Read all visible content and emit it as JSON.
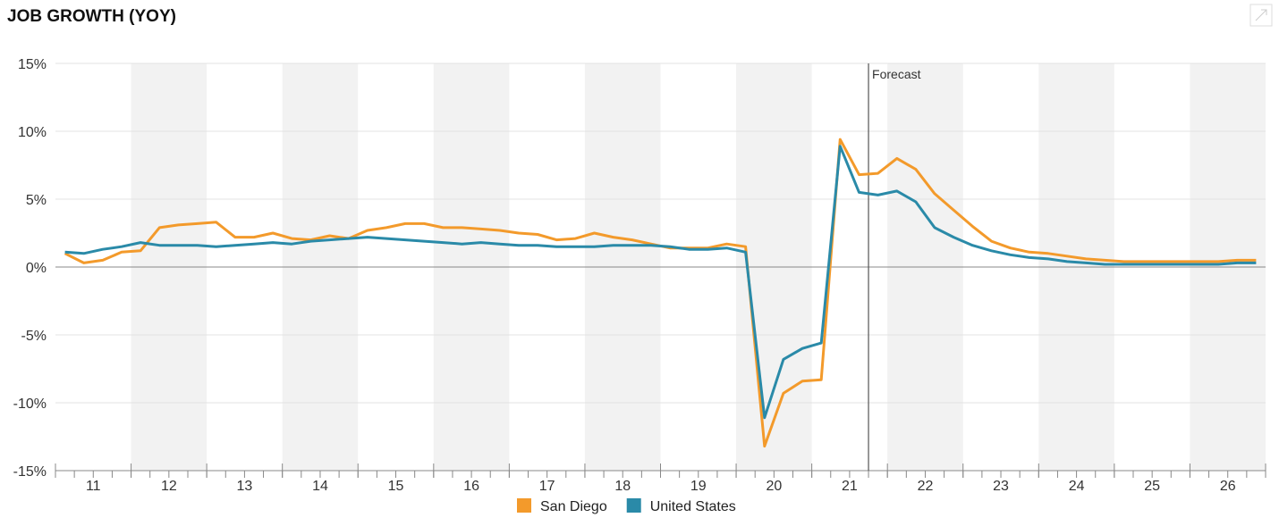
{
  "chart_data": {
    "type": "line",
    "title": "JOB GROWTH (YOY)",
    "x": [
      11.125,
      11.375,
      11.625,
      11.875,
      12.125,
      12.375,
      12.625,
      12.875,
      13.125,
      13.375,
      13.625,
      13.875,
      14.125,
      14.375,
      14.625,
      14.875,
      15.125,
      15.375,
      15.625,
      15.875,
      16.125,
      16.375,
      16.625,
      16.875,
      17.125,
      17.375,
      17.625,
      17.875,
      18.125,
      18.375,
      18.625,
      18.875,
      19.125,
      19.375,
      19.625,
      19.875,
      20.125,
      20.375,
      20.625,
      20.875,
      21.125,
      21.375,
      21.625,
      21.875,
      22.125,
      22.375,
      22.625,
      22.875,
      23.125,
      23.375,
      23.625,
      23.875,
      24.125,
      24.375,
      24.625,
      24.875,
      25.125,
      25.375,
      25.625,
      25.875,
      26.125,
      26.375,
      26.625,
      26.875
    ],
    "series": [
      {
        "name": "San Diego",
        "color": "#f39a2b",
        "values": [
          1.0,
          0.3,
          0.5,
          1.1,
          1.2,
          2.9,
          3.1,
          3.2,
          3.3,
          2.2,
          2.2,
          2.5,
          2.1,
          2.0,
          2.3,
          2.1,
          2.7,
          2.9,
          3.2,
          3.2,
          2.9,
          2.9,
          2.8,
          2.7,
          2.5,
          2.4,
          2.0,
          2.1,
          2.5,
          2.2,
          2.0,
          1.7,
          1.4,
          1.4,
          1.4,
          1.7,
          1.5,
          -13.2,
          -9.3,
          -8.4,
          -8.3,
          9.4,
          6.8,
          6.9,
          8.0,
          7.2,
          5.4,
          4.2,
          3.0,
          1.9,
          1.4,
          1.1,
          1.0,
          0.8,
          0.6,
          0.5,
          0.4,
          0.4,
          0.4,
          0.4,
          0.4,
          0.4,
          0.5,
          0.5
        ]
      },
      {
        "name": "United States",
        "color": "#2a8aa8",
        "values": [
          1.1,
          1.0,
          1.3,
          1.5,
          1.8,
          1.6,
          1.6,
          1.6,
          1.5,
          1.6,
          1.7,
          1.8,
          1.7,
          1.9,
          2.0,
          2.1,
          2.2,
          2.1,
          2.0,
          1.9,
          1.8,
          1.7,
          1.8,
          1.7,
          1.6,
          1.6,
          1.5,
          1.5,
          1.5,
          1.6,
          1.6,
          1.6,
          1.5,
          1.3,
          1.3,
          1.4,
          1.1,
          -11.1,
          -6.8,
          -6.0,
          -5.6,
          8.9,
          5.5,
          5.3,
          5.6,
          4.8,
          2.9,
          2.2,
          1.6,
          1.2,
          0.9,
          0.7,
          0.6,
          0.4,
          0.3,
          0.2,
          0.2,
          0.2,
          0.2,
          0.2,
          0.2,
          0.2,
          0.3,
          0.3
        ]
      }
    ],
    "xlim": [
      11,
      27
    ],
    "xticks": [
      {
        "value": 11.5,
        "label": "11"
      },
      {
        "value": 12.5,
        "label": "12"
      },
      {
        "value": 13.5,
        "label": "13"
      },
      {
        "value": 14.5,
        "label": "14"
      },
      {
        "value": 15.5,
        "label": "15"
      },
      {
        "value": 16.5,
        "label": "16"
      },
      {
        "value": 17.5,
        "label": "17"
      },
      {
        "value": 18.5,
        "label": "18"
      },
      {
        "value": 19.5,
        "label": "19"
      },
      {
        "value": 20.5,
        "label": "20"
      },
      {
        "value": 21.5,
        "label": "21"
      },
      {
        "value": 22.5,
        "label": "22"
      },
      {
        "value": 23.5,
        "label": "23"
      },
      {
        "value": 24.5,
        "label": "24"
      },
      {
        "value": 25.5,
        "label": "25"
      },
      {
        "value": 26.5,
        "label": "26"
      }
    ],
    "ylim": [
      -15,
      15
    ],
    "yticks": [
      {
        "value": -15,
        "label": "-15%"
      },
      {
        "value": -10,
        "label": "-10%"
      },
      {
        "value": -5,
        "label": "-5%"
      },
      {
        "value": 0,
        "label": "0%"
      },
      {
        "value": 5,
        "label": "5%"
      },
      {
        "value": 10,
        "label": "10%"
      },
      {
        "value": 15,
        "label": "15%"
      }
    ],
    "grid": true,
    "legend": "bottom",
    "annotations": [
      {
        "text": "Forecast",
        "x": 21.75
      }
    ]
  }
}
